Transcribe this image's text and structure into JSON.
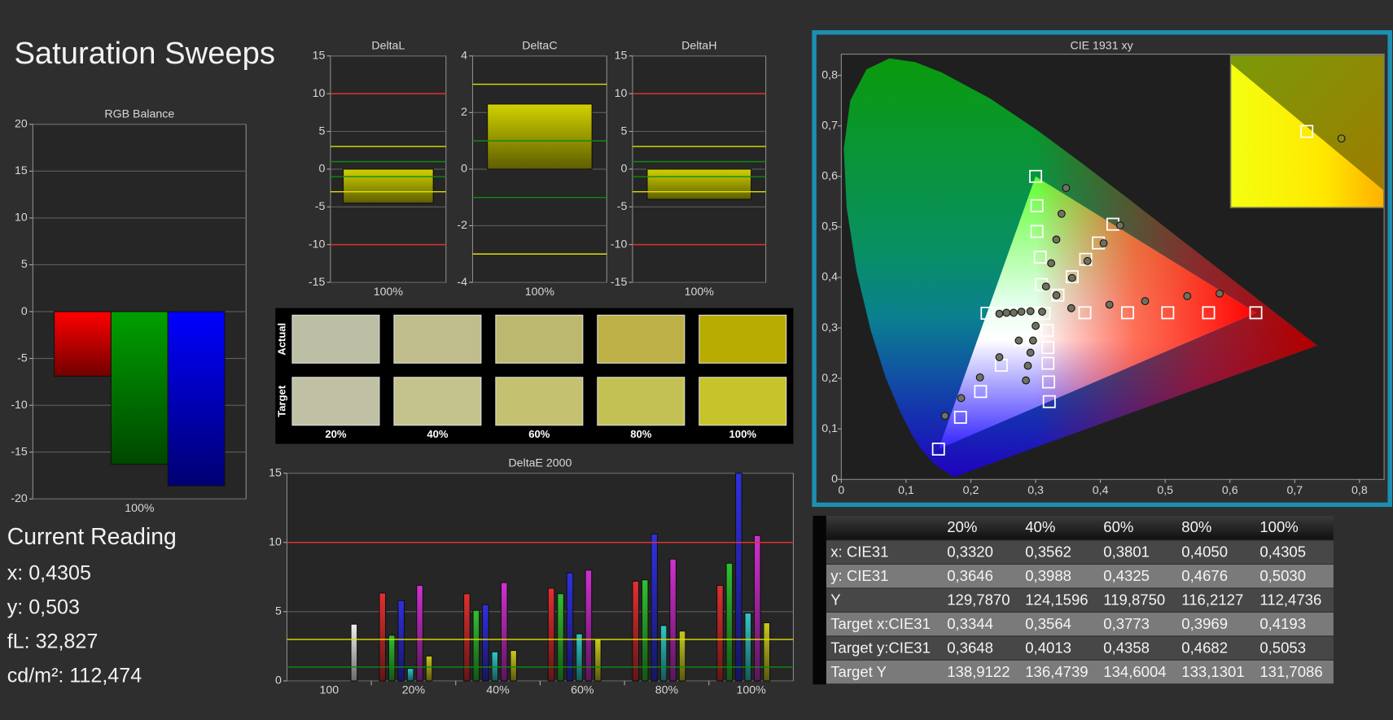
{
  "title": "Saturation Sweeps",
  "chart_data": [
    {
      "type": "bar",
      "title": "RGB Balance",
      "categories": [
        "100%"
      ],
      "series": [
        {
          "color": "#ff0000",
          "values": [
            -6.9
          ]
        },
        {
          "color": "#00a000",
          "values": [
            -16.3
          ]
        },
        {
          "color": "#0000ff",
          "values": [
            -18.6
          ]
        }
      ],
      "ylim": [
        -20,
        20
      ],
      "yticks": [
        -20,
        -15,
        -10,
        -5,
        0,
        5,
        10,
        15,
        20
      ],
      "grid": true
    },
    {
      "type": "bar",
      "title": "DeltaL",
      "categories": [
        "100%"
      ],
      "values": [
        -4.5
      ],
      "color": "#d2d200",
      "ylim": [
        -15,
        15
      ],
      "yticks": [
        -15,
        -10,
        -5,
        0,
        5,
        10,
        15
      ],
      "grid": true,
      "ref_lines": [
        {
          "value": 10,
          "color": "#e03030"
        },
        {
          "value": -10,
          "color": "#e03030"
        },
        {
          "value": 3,
          "color": "#e0e000"
        },
        {
          "value": -3,
          "color": "#e0e000"
        },
        {
          "value": 1,
          "color": "#108a10"
        },
        {
          "value": -1,
          "color": "#108a10"
        }
      ]
    },
    {
      "type": "bar",
      "title": "DeltaC",
      "categories": [
        "100%"
      ],
      "values": [
        2.3
      ],
      "color": "#d2d200",
      "ylim": [
        -4,
        4
      ],
      "yticks": [
        -4,
        -2,
        0,
        2,
        4
      ],
      "grid": true,
      "ref_lines": [
        {
          "value": 3,
          "color": "#e0e000"
        },
        {
          "value": -3,
          "color": "#e0e000"
        },
        {
          "value": 1,
          "color": "#108a10"
        },
        {
          "value": -1,
          "color": "#108a10"
        }
      ]
    },
    {
      "type": "bar",
      "title": "DeltaH",
      "categories": [
        "100%"
      ],
      "values": [
        -4.0
      ],
      "color": "#d2d200",
      "ylim": [
        -15,
        15
      ],
      "yticks": [
        -15,
        -10,
        -5,
        0,
        5,
        10,
        15
      ],
      "grid": true,
      "ref_lines": [
        {
          "value": 10,
          "color": "#e03030"
        },
        {
          "value": -10,
          "color": "#e03030"
        },
        {
          "value": 3,
          "color": "#e0e000"
        },
        {
          "value": -3,
          "color": "#e0e000"
        },
        {
          "value": 1,
          "color": "#108a10"
        },
        {
          "value": -1,
          "color": "#108a10"
        }
      ]
    },
    {
      "type": "bar",
      "title": "DeltaE 2000",
      "categories": [
        "100",
        "20%",
        "40%",
        "60%",
        "80%",
        "100%"
      ],
      "series": [
        {
          "color": "#e03030",
          "values": [
            null,
            6.35,
            6.3,
            6.7,
            7.2,
            6.9
          ]
        },
        {
          "color": "#30c030",
          "values": [
            null,
            3.3,
            5.1,
            6.3,
            7.3,
            8.5
          ]
        },
        {
          "color": "#3030e0",
          "values": [
            null,
            5.8,
            5.5,
            7.8,
            10.6,
            15
          ]
        },
        {
          "color": "#30c8c8",
          "values": [
            null,
            0.9,
            2.1,
            3.4,
            4.0,
            4.9
          ]
        },
        {
          "color": "#d030d0",
          "values": [
            null,
            6.9,
            7.1,
            8.0,
            8.8,
            10.5
          ]
        },
        {
          "color": "#c8c820",
          "values": [
            null,
            1.8,
            2.2,
            3.0,
            3.6,
            4.2
          ]
        },
        {
          "color": "#f0f0f0",
          "values": [
            4.1,
            null,
            null,
            null,
            null,
            null
          ]
        }
      ],
      "ylim": [
        0,
        15
      ],
      "yticks": [
        0,
        5,
        10,
        15
      ],
      "grid": true,
      "ref_lines": [
        {
          "value": 10,
          "color": "#e03030"
        },
        {
          "value": 3,
          "color": "#e0e000"
        },
        {
          "value": 1,
          "color": "#108a10"
        }
      ]
    },
    {
      "type": "scatter",
      "title": "CIE 1931 xy",
      "xlim": [
        0,
        0.838
      ],
      "ylim": [
        0,
        0.842
      ],
      "xticks": [
        0,
        {
          "value": 0.1,
          "label": "0,1"
        },
        {
          "value": 0.2,
          "label": "0,2"
        },
        {
          "value": 0.3,
          "label": "0,3"
        },
        {
          "value": 0.4,
          "label": "0,4"
        },
        {
          "value": 0.5,
          "label": "0,5"
        },
        {
          "value": 0.6,
          "label": "0,6"
        },
        {
          "value": 0.7,
          "label": "0,7"
        },
        {
          "value": 0.8,
          "label": "0,8"
        }
      ],
      "yticks": [
        0,
        {
          "value": 0.1,
          "label": "0,1"
        },
        {
          "value": 0.2,
          "label": "0,2"
        },
        {
          "value": 0.3,
          "label": "0,3"
        },
        {
          "value": 0.4,
          "label": "0,4"
        },
        {
          "value": 0.5,
          "label": "0,5"
        },
        {
          "value": 0.6,
          "label": "0,6"
        },
        {
          "value": 0.7,
          "label": "0,7"
        },
        {
          "value": 0.8,
          "label": "0,8"
        }
      ],
      "grid": false,
      "series": [
        {
          "marker": "square",
          "color": "#ffffff",
          "x": [
            0.376,
            0.442,
            0.504,
            0.567,
            0.64,
            0.309,
            0.307,
            0.302,
            0.302,
            0.3,
            0.277,
            0.247,
            0.215,
            0.184,
            0.15,
            0.299,
            0.282,
            0.264,
            0.246,
            0.225,
            0.318,
            0.319,
            0.319,
            0.32,
            0.321,
            0.3344,
            0.3564,
            0.3773,
            0.3969,
            0.4193,
            0.313
          ],
          "values": [
            0.33,
            0.33,
            0.33,
            0.33,
            0.33,
            0.386,
            0.44,
            0.491,
            0.542,
            0.6,
            0.277,
            0.226,
            0.174,
            0.123,
            0.06,
            0.329,
            0.329,
            0.329,
            0.329,
            0.329,
            0.295,
            0.261,
            0.23,
            0.193,
            0.154,
            0.3648,
            0.4013,
            0.4358,
            0.4682,
            0.5053,
            0.329
          ]
        },
        {
          "marker": "circle",
          "color": "#707060",
          "x": [
            0.355,
            0.414,
            0.469,
            0.534,
            0.584,
            0.316,
            0.324,
            0.332,
            0.34,
            0.347,
            0.274,
            0.244,
            0.214,
            0.185,
            0.16,
            0.292,
            0.278,
            0.266,
            0.255,
            0.244,
            0.3,
            0.296,
            0.292,
            0.288,
            0.285,
            0.332,
            0.3562,
            0.3801,
            0.405,
            0.4305,
            0.31
          ],
          "values": [
            0.339,
            0.346,
            0.353,
            0.363,
            0.368,
            0.382,
            0.428,
            0.475,
            0.526,
            0.577,
            0.275,
            0.242,
            0.202,
            0.161,
            0.126,
            0.333,
            0.332,
            0.33,
            0.33,
            0.328,
            0.304,
            0.275,
            0.251,
            0.225,
            0.196,
            0.3646,
            0.3988,
            0.4325,
            0.4676,
            0.503,
            0.332
          ]
        }
      ]
    }
  ],
  "swatches": {
    "rows": [
      {
        "label": "Actual",
        "colors": [
          "#bcbfa4",
          "#bfbe8c",
          "#bdb86f",
          "#bcb046",
          "#b9ac00"
        ]
      },
      {
        "label": "Target",
        "colors": [
          "#c0c0a4",
          "#c4c38b",
          "#c4c271",
          "#c3c153",
          "#c7c32a"
        ]
      }
    ],
    "columns": [
      "20%",
      "40%",
      "60%",
      "80%",
      "100%"
    ]
  },
  "current_reading": {
    "heading": "Current Reading",
    "lines": [
      "x: 0,4305",
      "y: 0,503",
      "fL: 32,827",
      "cd/m²: 112,474"
    ]
  },
  "table": {
    "header": [
      "20%",
      "40%",
      "60%",
      "80%",
      "100%"
    ],
    "rows": [
      [
        "x: CIE31",
        "0,3320",
        "0,3562",
        "0,3801",
        "0,4050",
        "0,4305"
      ],
      [
        "y: CIE31",
        "0,3646",
        "0,3988",
        "0,4325",
        "0,4676",
        "0,5030"
      ],
      [
        "Y",
        "129,7870",
        "124,1596",
        "119,8750",
        "116,2127",
        "112,4736"
      ],
      [
        "Target x:CIE31",
        "0,3344",
        "0,3564",
        "0,3773",
        "0,3969",
        "0,4193"
      ],
      [
        "Target y:CIE31",
        "0,3648",
        "0,4013",
        "0,4358",
        "0,4682",
        "0,5053"
      ],
      [
        "Target Y",
        "138,9122",
        "136,4739",
        "134,6004",
        "133,1301",
        "131,7086"
      ]
    ]
  }
}
